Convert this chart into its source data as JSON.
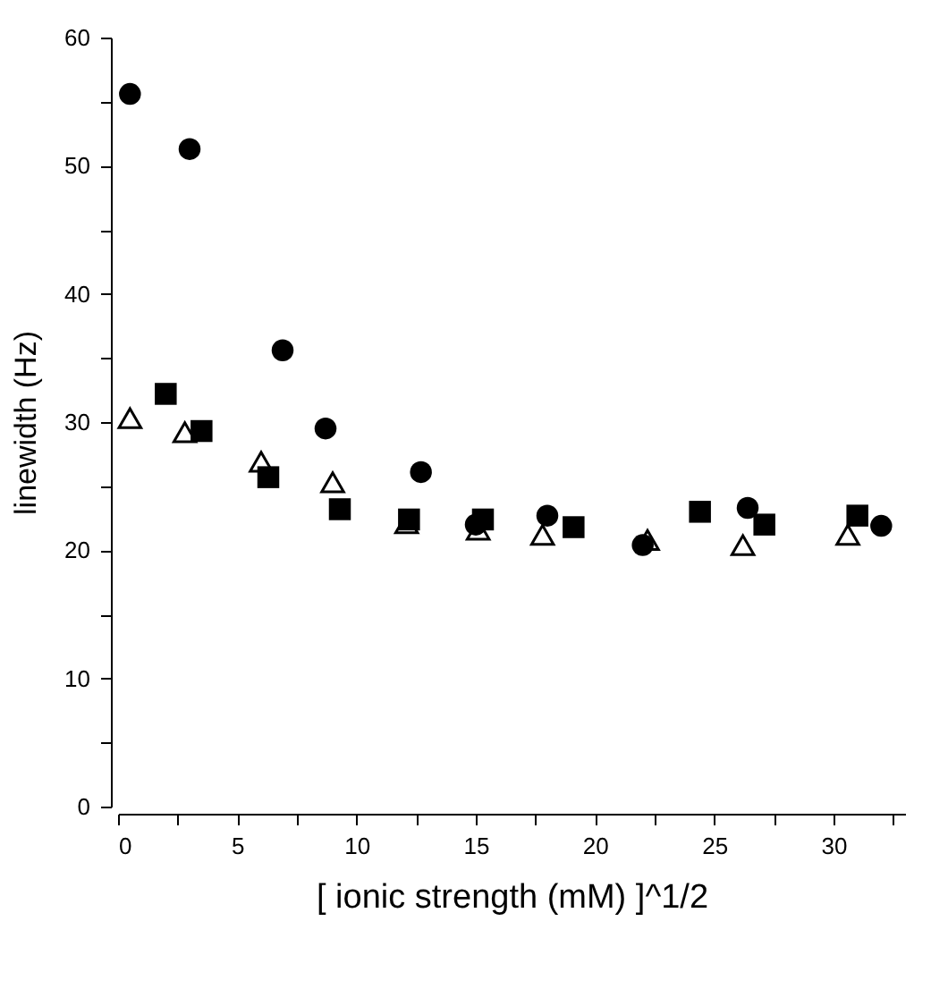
{
  "chart_data": {
    "type": "scatter",
    "xlabel": "[ ionic strength (mM) ]^1/2",
    "ylabel": "linewidth (Hz)",
    "series": [
      {
        "color": "#000000",
        "marker": "circle",
        "x": [
          0.5,
          3.0,
          6.9,
          8.7,
          12.7,
          15.0,
          18.0,
          22.0,
          26.4,
          32.0
        ],
        "values": [
          55.6,
          51.3,
          35.6,
          29.5,
          26.1,
          22.0,
          22.7,
          20.4,
          23.3,
          21.9
        ]
      },
      {
        "color": "#000000",
        "marker": "square",
        "x": [
          2.0,
          3.5,
          6.3,
          9.3,
          12.2,
          15.3,
          19.1,
          24.4,
          27.1,
          31.0
        ],
        "values": [
          32.2,
          29.3,
          25.7,
          23.2,
          22.4,
          22.4,
          21.8,
          23.0,
          22.0,
          22.7
        ]
      },
      {
        "color": "#000000",
        "marker": "triangle",
        "x": [
          0.5,
          2.8,
          6.0,
          9.0,
          12.1,
          15.1,
          17.8,
          22.2,
          26.2,
          30.6
        ],
        "values": [
          30.3,
          29.2,
          26.9,
          25.3,
          22.1,
          21.6,
          21.2,
          20.8,
          20.4,
          21.2
        ]
      }
    ],
    "xlim": [
      0,
      33
    ],
    "xticks": [
      0,
      {
        "value": 2.5,
        "label": null
      },
      5,
      {
        "value": 7.5,
        "label": null
      },
      10,
      {
        "value": 12.5,
        "label": null
      },
      15,
      {
        "value": 17.5,
        "label": null
      },
      20,
      {
        "value": 22.5,
        "label": null
      },
      25,
      {
        "value": 27.5,
        "label": null
      },
      30,
      {
        "value": 32.5,
        "label": null
      }
    ],
    "ylim": [
      0,
      60
    ],
    "yticks": [
      0,
      {
        "value": 5,
        "label": null
      },
      10,
      {
        "value": 15,
        "label": null
      },
      20,
      {
        "value": 25,
        "label": null
      },
      30,
      {
        "value": 35,
        "label": null
      },
      40,
      {
        "value": 45,
        "label": null
      },
      50,
      {
        "value": 55,
        "label": null
      },
      60
    ],
    "grid": false
  }
}
